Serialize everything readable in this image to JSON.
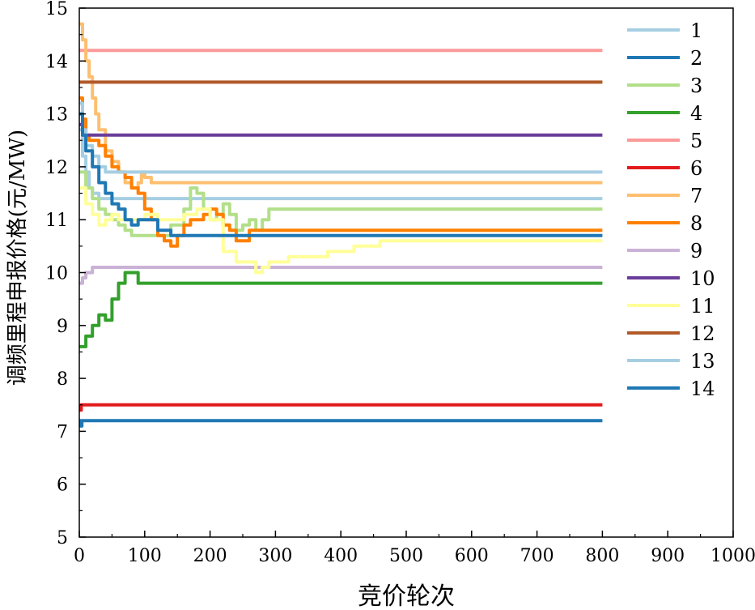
{
  "chart_data": {
    "type": "line",
    "title": "",
    "xlabel": "竞价轮次",
    "ylabel": "调频里程申报价格(元/MW)",
    "xlim": [
      0,
      1000
    ],
    "ylim": [
      5,
      15
    ],
    "xticks": [
      0,
      100,
      200,
      300,
      400,
      500,
      600,
      700,
      800,
      900,
      1000
    ],
    "yticks": [
      5,
      6,
      7,
      8,
      9,
      10,
      11,
      12,
      13,
      14,
      15
    ],
    "grid": false,
    "legend_position": "right",
    "series": [
      {
        "name": "1",
        "color": "#a6cee3",
        "x": [
          0,
          5,
          10,
          15,
          20,
          30,
          40,
          50,
          800
        ],
        "y": [
          12.7,
          12.2,
          11.9,
          11.6,
          11.5,
          11.4,
          11.4,
          11.4,
          11.4
        ]
      },
      {
        "name": "2",
        "color": "#1f78b4",
        "x": [
          0,
          2,
          4,
          5,
          800
        ],
        "y": [
          7.2,
          7.1,
          7.2,
          7.2,
          7.2
        ]
      },
      {
        "name": "3",
        "color": "#b2df8a",
        "x": [
          0,
          10,
          20,
          30,
          40,
          50,
          60,
          70,
          80,
          100,
          120,
          140,
          160,
          170,
          180,
          190,
          200,
          210,
          220,
          230,
          240,
          250,
          260,
          270,
          280,
          290,
          300,
          800
        ],
        "y": [
          11.9,
          11.6,
          11.4,
          11.2,
          11.1,
          11.0,
          10.9,
          10.8,
          10.7,
          10.7,
          10.7,
          10.9,
          11.2,
          11.6,
          11.5,
          11.2,
          11.0,
          11.1,
          11.3,
          11.1,
          10.8,
          10.9,
          11.0,
          10.8,
          11.0,
          11.2,
          11.2,
          11.2
        ]
      },
      {
        "name": "4",
        "color": "#33a02c",
        "x": [
          0,
          5,
          10,
          20,
          30,
          40,
          50,
          60,
          70,
          80,
          90,
          800
        ],
        "y": [
          8.6,
          8.6,
          8.8,
          9.0,
          9.2,
          9.1,
          9.5,
          9.8,
          10.0,
          10.0,
          9.8,
          9.8
        ]
      },
      {
        "name": "5",
        "color": "#fb9a99",
        "x": [
          0,
          800
        ],
        "y": [
          14.2,
          14.2
        ]
      },
      {
        "name": "6",
        "color": "#e31a1c",
        "x": [
          0,
          3,
          5,
          800
        ],
        "y": [
          7.4,
          7.5,
          7.5,
          7.5
        ]
      },
      {
        "name": "7",
        "color": "#fdbf6f",
        "x": [
          0,
          5,
          10,
          15,
          20,
          25,
          30,
          40,
          50,
          60,
          70,
          80,
          90,
          95,
          100,
          105,
          110,
          800
        ],
        "y": [
          14.7,
          14.4,
          14.0,
          13.7,
          13.3,
          13.0,
          12.7,
          12.3,
          12.1,
          11.9,
          11.7,
          11.6,
          11.7,
          11.9,
          11.8,
          11.8,
          11.7,
          11.7
        ]
      },
      {
        "name": "8",
        "color": "#ff7f00",
        "x": [
          0,
          5,
          10,
          15,
          20,
          30,
          40,
          50,
          60,
          70,
          80,
          90,
          100,
          110,
          120,
          130,
          140,
          150,
          160,
          170,
          180,
          190,
          200,
          210,
          220,
          230,
          240,
          250,
          260,
          800
        ],
        "y": [
          13.3,
          12.9,
          12.6,
          12.5,
          12.5,
          12.4,
          12.2,
          12.0,
          11.9,
          11.8,
          11.6,
          11.5,
          11.2,
          11.0,
          10.7,
          10.6,
          10.5,
          10.7,
          10.9,
          11.0,
          11.0,
          11.1,
          11.2,
          11.1,
          10.9,
          10.8,
          10.6,
          10.6,
          10.8,
          10.8
        ]
      },
      {
        "name": "9",
        "color": "#cab2d6",
        "x": [
          0,
          5,
          10,
          20,
          30,
          800
        ],
        "y": [
          9.8,
          9.9,
          10.0,
          10.1,
          10.1,
          10.1
        ]
      },
      {
        "name": "10",
        "color": "#6a3d9a",
        "x": [
          0,
          5,
          10,
          20,
          800
        ],
        "y": [
          12.8,
          12.6,
          12.6,
          12.6,
          12.6
        ]
      },
      {
        "name": "11",
        "color": "#ffff99",
        "x": [
          0,
          10,
          20,
          30,
          40,
          50,
          60,
          80,
          100,
          120,
          140,
          160,
          180,
          200,
          220,
          240,
          260,
          270,
          280,
          290,
          300,
          320,
          340,
          360,
          380,
          400,
          420,
          440,
          460,
          480,
          500,
          800
        ],
        "y": [
          11.6,
          11.3,
          11.1,
          10.9,
          11.0,
          11.1,
          11.0,
          11.0,
          11.1,
          11.0,
          11.0,
          11.1,
          11.2,
          11.0,
          10.4,
          10.2,
          10.2,
          10.0,
          10.1,
          10.2,
          10.2,
          10.3,
          10.3,
          10.3,
          10.4,
          10.4,
          10.5,
          10.5,
          10.6,
          10.6,
          10.6,
          10.6
        ]
      },
      {
        "name": "12",
        "color": "#b15928",
        "x": [
          0,
          800
        ],
        "y": [
          13.6,
          13.6
        ]
      },
      {
        "name": "13",
        "color": "#a6cee3",
        "x": [
          0,
          5,
          10,
          20,
          30,
          40,
          800
        ],
        "y": [
          13.2,
          12.7,
          12.4,
          12.2,
          12.0,
          11.9,
          11.9
        ]
      },
      {
        "name": "14",
        "color": "#1f78b4",
        "x": [
          0,
          5,
          10,
          20,
          30,
          40,
          50,
          60,
          70,
          80,
          90,
          100,
          110,
          120,
          130,
          140,
          150,
          160,
          800
        ],
        "y": [
          13.0,
          12.6,
          12.3,
          12.0,
          11.7,
          11.5,
          11.3,
          11.2,
          11.0,
          10.9,
          11.0,
          11.0,
          11.0,
          10.8,
          10.8,
          10.7,
          10.7,
          10.7,
          10.7
        ]
      }
    ]
  }
}
